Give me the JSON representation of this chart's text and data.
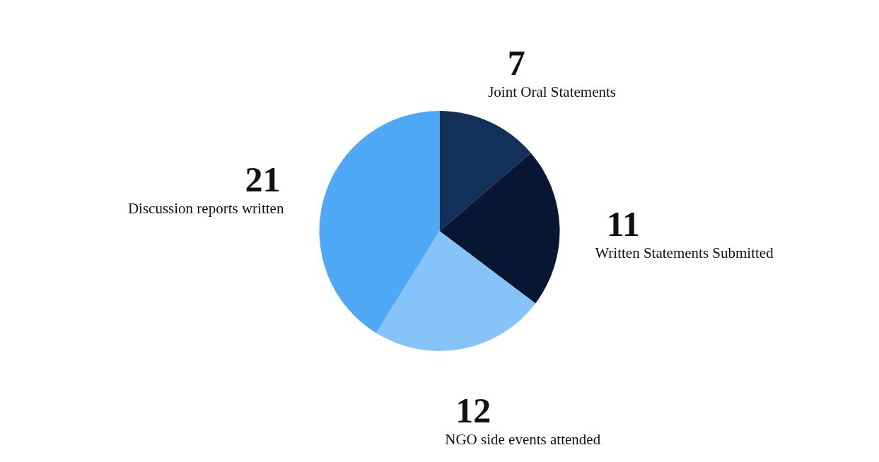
{
  "chart_data": {
    "type": "pie",
    "categories": [
      "Joint Oral Statements",
      "Written Statements Submitted",
      "NGO side events attended",
      "Discussion reports written"
    ],
    "values": [
      7,
      11,
      12,
      21
    ],
    "colors": [
      "#12305a",
      "#071733",
      "#85c3f8",
      "#4fa8f5"
    ],
    "data_labels": true,
    "legend": false
  }
}
